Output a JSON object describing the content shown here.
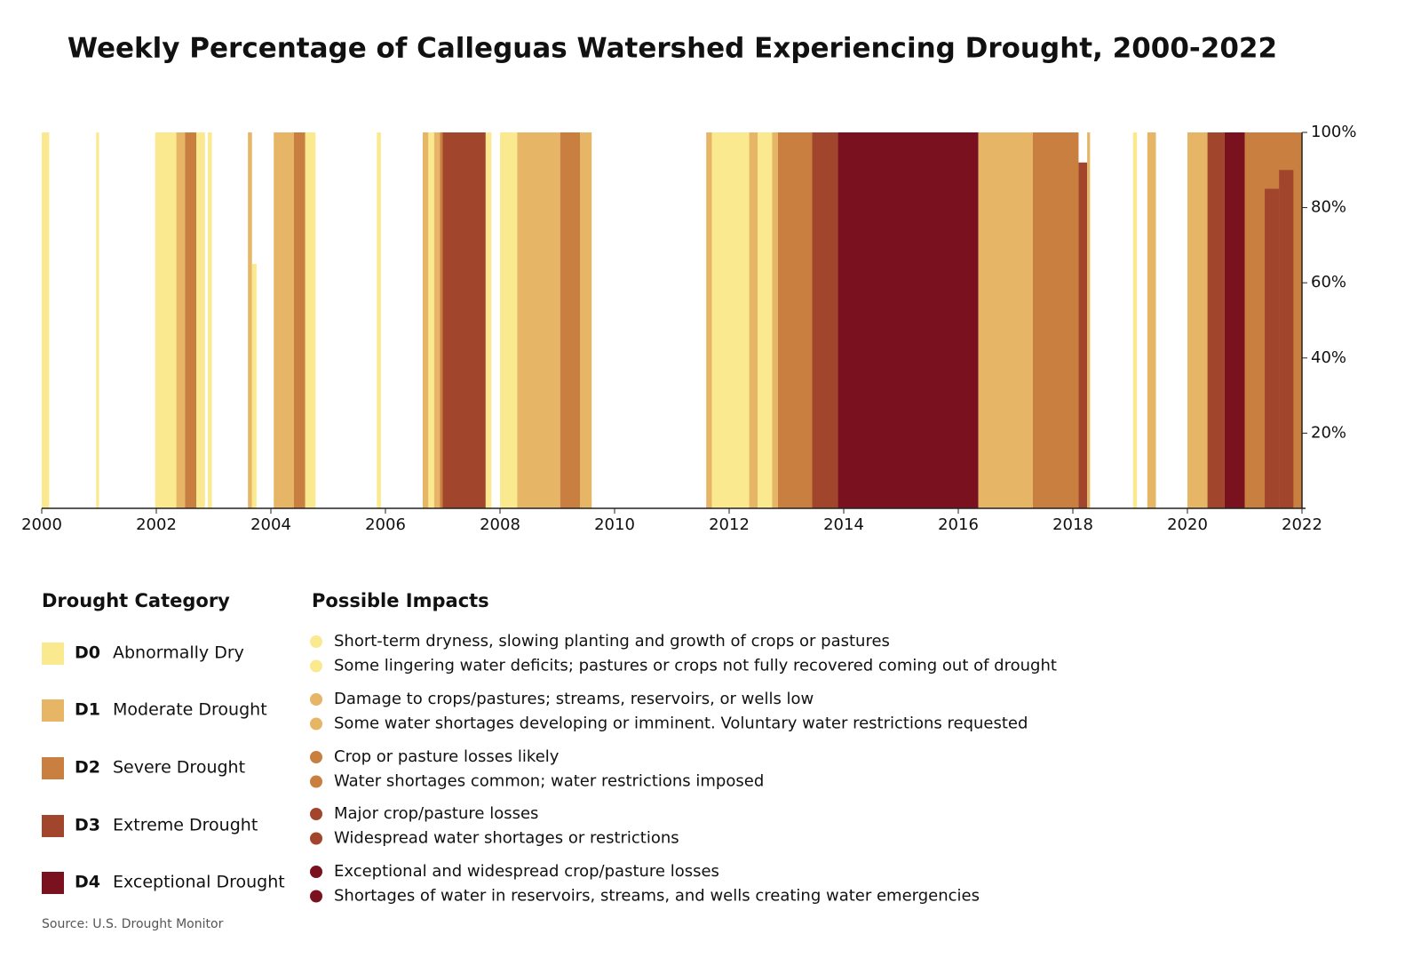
{
  "chart_data": {
    "type": "span-bar",
    "title": "Weekly Percentage of Calleguas Watershed Experiencing Drought, 2000-2022",
    "xlim": [
      2000,
      2022
    ],
    "xticks": [
      2000,
      2002,
      2004,
      2006,
      2008,
      2010,
      2012,
      2014,
      2016,
      2018,
      2020,
      2022
    ],
    "ylim": [
      0,
      100
    ],
    "yticks": [
      {
        "value": 20,
        "label": "20%"
      },
      {
        "value": 40,
        "label": "40%"
      },
      {
        "value": 60,
        "label": "60%"
      },
      {
        "value": 80,
        "label": "80%"
      },
      {
        "value": 100,
        "label": "100%"
      }
    ],
    "legend_title": "Drought Category",
    "impacts_title": "Possible Impacts",
    "categories": [
      {
        "code": "D0",
        "label": "Abnormally Dry",
        "color": "#fbe98f",
        "impacts": [
          "Short-term dryness, slowing planting and growth of crops or pastures",
          "Some lingering water deficits; pastures or crops not fully recovered coming out of drought"
        ]
      },
      {
        "code": "D1",
        "label": "Moderate Drought",
        "color": "#e6b566",
        "impacts": [
          "Damage to crops/pastures; streams, reservoirs, or wells low",
          "Some water shortages developing or imminent. Voluntary water restrictions requested"
        ]
      },
      {
        "code": "D2",
        "label": "Severe Drought",
        "color": "#c97f40",
        "impacts": [
          "Crop or pasture losses likely",
          "Water shortages common; water restrictions imposed"
        ]
      },
      {
        "code": "D3",
        "label": "Extreme Drought",
        "color": "#a1452c",
        "impacts": [
          "Major crop/pasture losses",
          "Widespread water shortages or restrictions"
        ]
      },
      {
        "code": "D4",
        "label": "Exceptional Drought",
        "color": "#7a111f",
        "impacts": [
          "Exceptional and widespread crop/pasture losses",
          "Shortages of water in reservoirs, streams, and wells creating water emergencies"
        ]
      }
    ],
    "bars": [
      {
        "x0": 2000.0,
        "x1": 2000.13,
        "cat": 0,
        "value": 100
      },
      {
        "x0": 2000.95,
        "x1": 2001.0,
        "cat": 0,
        "value": 100
      },
      {
        "x0": 2001.98,
        "x1": 2002.35,
        "cat": 0,
        "value": 100
      },
      {
        "x0": 2002.35,
        "x1": 2002.5,
        "cat": 1,
        "value": 100
      },
      {
        "x0": 2002.5,
        "x1": 2002.7,
        "cat": 2,
        "value": 100
      },
      {
        "x0": 2002.7,
        "x1": 2002.85,
        "cat": 0,
        "value": 100
      },
      {
        "x0": 2002.9,
        "x1": 2002.97,
        "cat": 0,
        "value": 100
      },
      {
        "x0": 2003.6,
        "x1": 2003.67,
        "cat": 1,
        "value": 100
      },
      {
        "x0": 2003.67,
        "x1": 2003.75,
        "cat": 0,
        "value": 65
      },
      {
        "x0": 2004.05,
        "x1": 2004.4,
        "cat": 1,
        "value": 100
      },
      {
        "x0": 2004.4,
        "x1": 2004.6,
        "cat": 2,
        "value": 100
      },
      {
        "x0": 2004.6,
        "x1": 2004.78,
        "cat": 0,
        "value": 100
      },
      {
        "x0": 2005.85,
        "x1": 2005.92,
        "cat": 0,
        "value": 100
      },
      {
        "x0": 2006.65,
        "x1": 2006.75,
        "cat": 1,
        "value": 100
      },
      {
        "x0": 2006.75,
        "x1": 2006.85,
        "cat": 0,
        "value": 100
      },
      {
        "x0": 2006.85,
        "x1": 2006.95,
        "cat": 1,
        "value": 100
      },
      {
        "x0": 2006.95,
        "x1": 2007.0,
        "cat": 2,
        "value": 100
      },
      {
        "x0": 2007.0,
        "x1": 2007.75,
        "cat": 3,
        "value": 100
      },
      {
        "x0": 2007.75,
        "x1": 2007.85,
        "cat": 0,
        "value": 100
      },
      {
        "x0": 2008.0,
        "x1": 2008.3,
        "cat": 0,
        "value": 100
      },
      {
        "x0": 2008.3,
        "x1": 2009.05,
        "cat": 1,
        "value": 100
      },
      {
        "x0": 2009.05,
        "x1": 2009.4,
        "cat": 2,
        "value": 100
      },
      {
        "x0": 2009.4,
        "x1": 2009.6,
        "cat": 1,
        "value": 100
      },
      {
        "x0": 2011.6,
        "x1": 2011.7,
        "cat": 1,
        "value": 100
      },
      {
        "x0": 2011.7,
        "x1": 2012.35,
        "cat": 0,
        "value": 100
      },
      {
        "x0": 2012.35,
        "x1": 2012.5,
        "cat": 1,
        "value": 100
      },
      {
        "x0": 2012.5,
        "x1": 2012.75,
        "cat": 0,
        "value": 100
      },
      {
        "x0": 2012.75,
        "x1": 2012.85,
        "cat": 1,
        "value": 100
      },
      {
        "x0": 2012.85,
        "x1": 2013.45,
        "cat": 2,
        "value": 100
      },
      {
        "x0": 2013.45,
        "x1": 2013.9,
        "cat": 3,
        "value": 100
      },
      {
        "x0": 2013.9,
        "x1": 2016.35,
        "cat": 4,
        "value": 100
      },
      {
        "x0": 2016.35,
        "x1": 2017.3,
        "cat": 1,
        "value": 100
      },
      {
        "x0": 2017.3,
        "x1": 2018.1,
        "cat": 2,
        "value": 100
      },
      {
        "x0": 2018.1,
        "x1": 2018.25,
        "cat": 3,
        "value": 92
      },
      {
        "x0": 2018.25,
        "x1": 2018.3,
        "cat": 1,
        "value": 100
      },
      {
        "x0": 2019.05,
        "x1": 2019.12,
        "cat": 0,
        "value": 100
      },
      {
        "x0": 2019.3,
        "x1": 2019.45,
        "cat": 1,
        "value": 100
      },
      {
        "x0": 2020.0,
        "x1": 2020.35,
        "cat": 1,
        "value": 100
      },
      {
        "x0": 2020.35,
        "x1": 2020.65,
        "cat": 3,
        "value": 100
      },
      {
        "x0": 2020.65,
        "x1": 2021.0,
        "cat": 4,
        "value": 100
      },
      {
        "x0": 2021.0,
        "x1": 2022.0,
        "cat": 2,
        "value": 100
      },
      {
        "x0": 2021.35,
        "x1": 2021.6,
        "cat": 3,
        "value": 85
      },
      {
        "x0": 2021.6,
        "x1": 2021.85,
        "cat": 3,
        "value": 90
      }
    ],
    "source": "Source: U.S. Drought Monitor"
  }
}
